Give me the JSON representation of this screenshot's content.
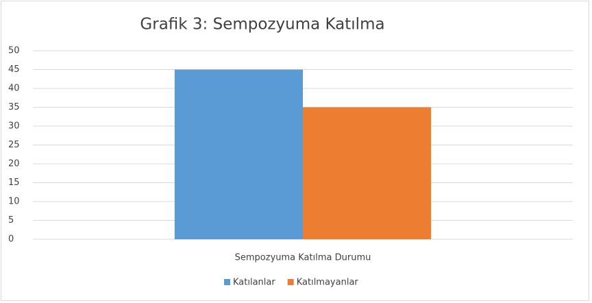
{
  "chart_data": {
    "type": "bar",
    "title": "Grafik 3: Sempozyuma Katılma",
    "categories": [
      "Sempozyuma Katılma Durumu"
    ],
    "series": [
      {
        "name": "Katılanlar",
        "color": "#5b9bd5",
        "values": [
          45
        ]
      },
      {
        "name": "Katılmayanlar",
        "color": "#ed7d31",
        "values": [
          35
        ]
      }
    ],
    "ylim": [
      0,
      50
    ],
    "yticks": [
      0,
      5,
      10,
      15,
      20,
      25,
      30,
      35,
      40,
      45,
      50
    ],
    "grid": true,
    "legend": "bottom"
  }
}
